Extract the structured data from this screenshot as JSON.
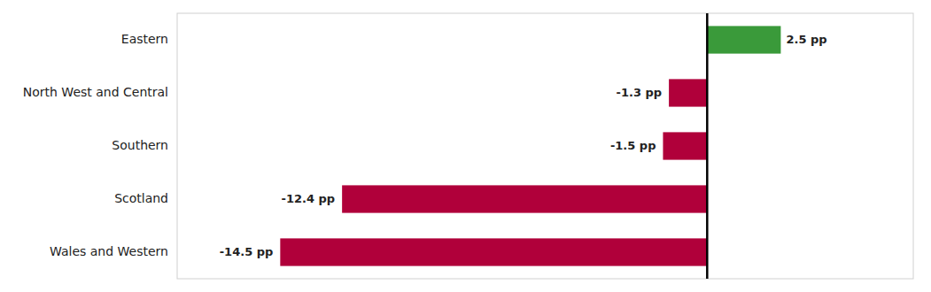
{
  "chart_data": {
    "type": "bar",
    "orientation": "horizontal",
    "categories": [
      "Eastern",
      "North West and Central",
      "Southern",
      "Scotland",
      "Wales and Western"
    ],
    "values": [
      2.5,
      -1.3,
      -1.5,
      -12.4,
      -14.5
    ],
    "value_labels": [
      "2.5 pp",
      "-1.3 pp",
      "-1.5 pp",
      "-12.4 pp",
      "-14.5 pp"
    ],
    "colors": [
      "#3a9a3a",
      "#b0003a",
      "#b0003a",
      "#b0003a",
      "#b0003a"
    ],
    "xlim": [
      -18,
      7
    ],
    "grid": false,
    "data_labels": true,
    "tick_labels": "y"
  }
}
